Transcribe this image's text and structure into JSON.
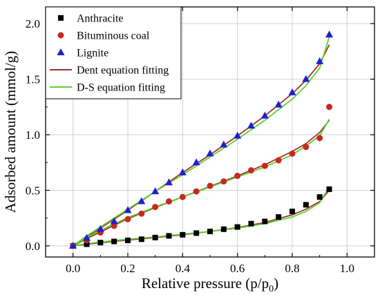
{
  "chart_data": {
    "type": "scatter",
    "title": "",
    "xlabel": "Relative pressure (p/p0)",
    "xlabel_parts": {
      "main": "Relative pressure (p/p",
      "subscript": "0",
      "close": ")"
    },
    "ylabel": "Adsorbed amount (mmol/g)",
    "xlim": [
      -0.1,
      1.1
    ],
    "ylim": [
      -0.1,
      2.15
    ],
    "xticks": [
      0.0,
      0.2,
      0.4,
      0.6,
      0.8,
      1.0
    ],
    "xtick_labels": [
      "0.0",
      "0.2",
      "0.4",
      "0.6",
      "0.8",
      "1.0"
    ],
    "yticks": [
      0.0,
      0.5,
      1.0,
      1.5,
      2.0
    ],
    "ytick_labels": [
      "0.0",
      "0.5",
      "1.0",
      "1.5",
      "2.0"
    ],
    "grid": true,
    "legend_position": "top-left",
    "series": [
      {
        "name": "Anthracite",
        "kind": "scatter",
        "marker": "square",
        "color": "#000000",
        "x": [
          0.0,
          0.05,
          0.1,
          0.15,
          0.2,
          0.25,
          0.3,
          0.35,
          0.4,
          0.45,
          0.5,
          0.55,
          0.6,
          0.65,
          0.7,
          0.75,
          0.8,
          0.85,
          0.9,
          0.935
        ],
        "y": [
          0.0,
          0.015,
          0.03,
          0.04,
          0.05,
          0.06,
          0.075,
          0.09,
          0.1,
          0.115,
          0.13,
          0.15,
          0.17,
          0.2,
          0.22,
          0.26,
          0.31,
          0.37,
          0.44,
          0.51
        ]
      },
      {
        "name": "Bituminous coal",
        "kind": "scatter",
        "marker": "circle",
        "color": "#c8281e",
        "x": [
          0.0,
          0.05,
          0.1,
          0.15,
          0.2,
          0.25,
          0.3,
          0.35,
          0.4,
          0.45,
          0.5,
          0.55,
          0.6,
          0.65,
          0.7,
          0.75,
          0.8,
          0.85,
          0.9,
          0.935
        ],
        "y": [
          0.0,
          0.05,
          0.12,
          0.18,
          0.24,
          0.29,
          0.35,
          0.4,
          0.44,
          0.49,
          0.54,
          0.58,
          0.63,
          0.68,
          0.72,
          0.77,
          0.83,
          0.89,
          0.97,
          1.25
        ]
      },
      {
        "name": "Lignite",
        "kind": "scatter",
        "marker": "triangle",
        "color": "#1f1fcf",
        "x": [
          0.0,
          0.05,
          0.1,
          0.15,
          0.2,
          0.25,
          0.3,
          0.35,
          0.4,
          0.45,
          0.5,
          0.55,
          0.6,
          0.65,
          0.7,
          0.75,
          0.8,
          0.85,
          0.9,
          0.935
        ],
        "y": [
          0.0,
          0.07,
          0.15,
          0.22,
          0.32,
          0.4,
          0.49,
          0.57,
          0.66,
          0.75,
          0.83,
          0.91,
          0.99,
          1.08,
          1.17,
          1.27,
          1.38,
          1.5,
          1.66,
          1.9
        ]
      },
      {
        "name": "Dent equation fitting",
        "kind": "line",
        "color": "#a0332a",
        "curves": [
          {
            "x": [
              0.0,
              0.05,
              0.1,
              0.2,
              0.3,
              0.4,
              0.5,
              0.6,
              0.7,
              0.8,
              0.85,
              0.9,
              0.935
            ],
            "y": [
              0.0,
              0.015,
              0.028,
              0.052,
              0.075,
              0.1,
              0.13,
              0.165,
              0.21,
              0.28,
              0.33,
              0.4,
              0.5
            ]
          },
          {
            "x": [
              0.0,
              0.05,
              0.1,
              0.2,
              0.3,
              0.4,
              0.5,
              0.6,
              0.7,
              0.8,
              0.85,
              0.9,
              0.935
            ],
            "y": [
              0.0,
              0.065,
              0.125,
              0.245,
              0.345,
              0.44,
              0.535,
              0.63,
              0.73,
              0.85,
              0.92,
              1.02,
              1.13
            ]
          },
          {
            "x": [
              0.0,
              0.05,
              0.1,
              0.2,
              0.3,
              0.4,
              0.5,
              0.6,
              0.7,
              0.8,
              0.85,
              0.9,
              0.935
            ],
            "y": [
              0.0,
              0.08,
              0.16,
              0.32,
              0.49,
              0.66,
              0.82,
              0.99,
              1.17,
              1.37,
              1.49,
              1.64,
              1.81
            ]
          }
        ]
      },
      {
        "name": "D-S equation fitting",
        "kind": "line",
        "color": "#5cd02c",
        "curves": [
          {
            "x": [
              0.0,
              0.05,
              0.1,
              0.2,
              0.3,
              0.4,
              0.5,
              0.6,
              0.7,
              0.8,
              0.85,
              0.9,
              0.935
            ],
            "y": [
              0.0,
              0.02,
              0.035,
              0.06,
              0.08,
              0.105,
              0.13,
              0.16,
              0.2,
              0.26,
              0.31,
              0.39,
              0.53
            ]
          },
          {
            "x": [
              0.0,
              0.05,
              0.1,
              0.2,
              0.3,
              0.4,
              0.5,
              0.6,
              0.7,
              0.8,
              0.85,
              0.9,
              0.935
            ],
            "y": [
              0.0,
              0.075,
              0.14,
              0.255,
              0.35,
              0.44,
              0.53,
              0.62,
              0.71,
              0.82,
              0.9,
              0.99,
              1.14
            ]
          },
          {
            "x": [
              0.0,
              0.05,
              0.1,
              0.2,
              0.3,
              0.4,
              0.5,
              0.6,
              0.7,
              0.8,
              0.85,
              0.9,
              0.935
            ],
            "y": [
              0.0,
              0.09,
              0.17,
              0.33,
              0.49,
              0.64,
              0.8,
              0.96,
              1.13,
              1.32,
              1.44,
              1.6,
              1.88
            ]
          }
        ]
      }
    ]
  }
}
